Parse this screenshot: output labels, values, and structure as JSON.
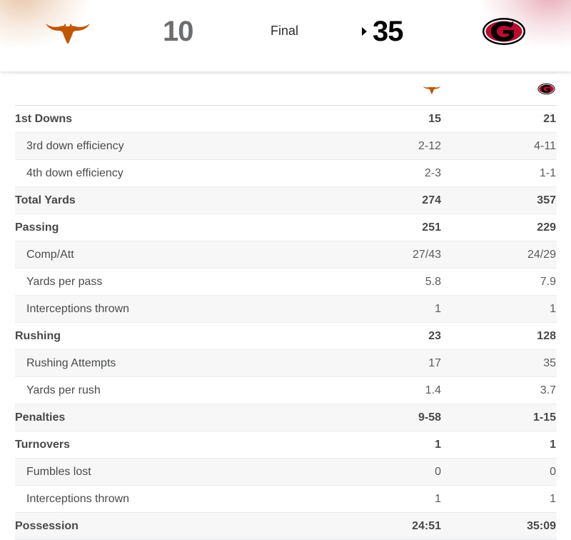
{
  "game": {
    "home_team": {
      "logo": "texas-longhorn-logo",
      "score": "10",
      "color": "#BF5700"
    },
    "away_team": {
      "logo": "georgia-g-logo",
      "score": "35",
      "color": "#BA0C2F"
    },
    "status": "Final"
  },
  "stats": [
    {
      "label": "1st Downs",
      "home": "15",
      "away": "21",
      "type": "main"
    },
    {
      "label": "3rd down efficiency",
      "home": "2-12",
      "away": "4-11",
      "type": "sub"
    },
    {
      "label": "4th down efficiency",
      "home": "2-3",
      "away": "1-1",
      "type": "sub"
    },
    {
      "label": "Total Yards",
      "home": "274",
      "away": "357",
      "type": "main"
    },
    {
      "label": "Passing",
      "home": "251",
      "away": "229",
      "type": "main"
    },
    {
      "label": "Comp/Att",
      "home": "27/43",
      "away": "24/29",
      "type": "sub"
    },
    {
      "label": "Yards per pass",
      "home": "5.8",
      "away": "7.9",
      "type": "sub"
    },
    {
      "label": "Interceptions thrown",
      "home": "1",
      "away": "1",
      "type": "sub"
    },
    {
      "label": "Rushing",
      "home": "23",
      "away": "128",
      "type": "main"
    },
    {
      "label": "Rushing Attempts",
      "home": "17",
      "away": "35",
      "type": "sub"
    },
    {
      "label": "Yards per rush",
      "home": "1.4",
      "away": "3.7",
      "type": "sub"
    },
    {
      "label": "Penalties",
      "home": "9-58",
      "away": "1-15",
      "type": "main"
    },
    {
      "label": "Turnovers",
      "home": "1",
      "away": "1",
      "type": "main"
    },
    {
      "label": "Fumbles lost",
      "home": "0",
      "away": "0",
      "type": "sub"
    },
    {
      "label": "Interceptions thrown",
      "home": "1",
      "away": "1",
      "type": "sub"
    },
    {
      "label": "Possession",
      "home": "24:51",
      "away": "35:09",
      "type": "main"
    }
  ]
}
